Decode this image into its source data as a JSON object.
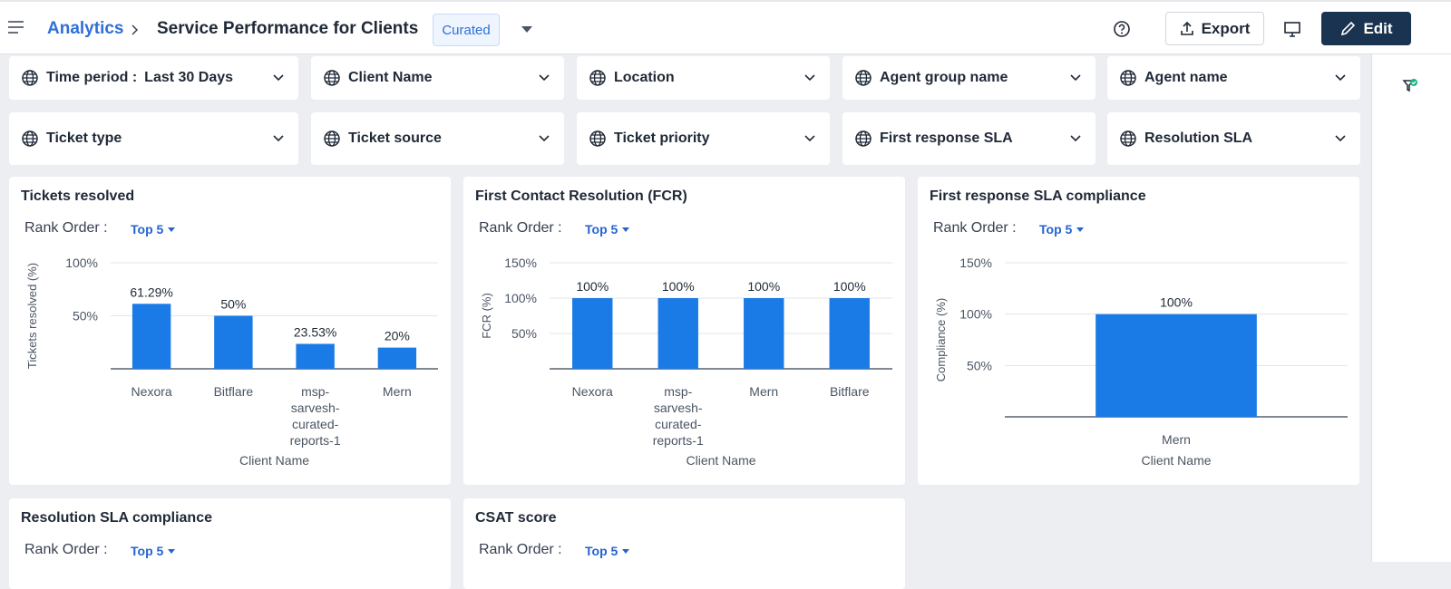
{
  "header": {
    "breadcrumb": "Analytics",
    "title": "Service Performance for Clients",
    "badge": "Curated",
    "export": "Export",
    "edit": "Edit"
  },
  "filters": [
    {
      "label": "Time period :",
      "value": "Last 30 Days"
    },
    {
      "label": "Client Name"
    },
    {
      "label": "Location"
    },
    {
      "label": "Agent group name"
    },
    {
      "label": "Agent name"
    },
    {
      "label": "Ticket type"
    },
    {
      "label": "Ticket source"
    },
    {
      "label": "Ticket priority"
    },
    {
      "label": "First response SLA"
    },
    {
      "label": "Resolution SLA"
    }
  ],
  "panels": [
    {
      "title": "Tickets resolved",
      "rank_label": "Rank Order :",
      "rank_value": "Top 5",
      "chart": {
        "type": "bar",
        "categories": [
          "Nexora",
          "Bitflare",
          "msp-sarvesh-curated-reports-1",
          "Mern"
        ],
        "values": [
          61.29,
          50,
          23.53,
          20
        ],
        "value_labels": [
          "61.29%",
          "50%",
          "23.53%",
          "20%"
        ],
        "ylim": [
          0,
          100
        ],
        "yticks": [
          {
            "value": 50,
            "label": "50%"
          },
          {
            "value": 100,
            "label": "100%"
          }
        ],
        "ylabel": "Tickets resolved (%)",
        "xlabel": "Client Name",
        "color": "#1a7be6"
      }
    },
    {
      "title": "First Contact Resolution (FCR)",
      "rank_label": "Rank Order :",
      "rank_value": "Top 5",
      "chart": {
        "type": "bar",
        "categories": [
          "Nexora",
          "msp-sarvesh-curated-reports-1",
          "Mern",
          "Bitflare"
        ],
        "values": [
          100,
          100,
          100,
          100
        ],
        "value_labels": [
          "100%",
          "100%",
          "100%",
          "100%"
        ],
        "ylim": [
          0,
          150
        ],
        "yticks": [
          {
            "value": 50,
            "label": "50%"
          },
          {
            "value": 100,
            "label": "100%"
          },
          {
            "value": 150,
            "label": "150%"
          }
        ],
        "ylabel": "FCR (%)",
        "xlabel": "Client Name",
        "color": "#1a7be6"
      }
    },
    {
      "title": "First response SLA compliance",
      "rank_label": "Rank Order :",
      "rank_value": "Top 5",
      "chart": {
        "type": "bar",
        "categories": [
          "Mern"
        ],
        "values": [
          100
        ],
        "value_labels": [
          "100%"
        ],
        "ylim": [
          0,
          150
        ],
        "yticks": [
          {
            "value": 50,
            "label": "50%"
          },
          {
            "value": 100,
            "label": "100%"
          },
          {
            "value": 150,
            "label": "150%"
          }
        ],
        "ylabel": "Compliance (%)",
        "xlabel": "Client Name",
        "color": "#1a7be6"
      }
    },
    {
      "title": "Resolution SLA compliance",
      "rank_label": "Rank Order :",
      "rank_value": "Top 5"
    },
    {
      "title": "CSAT score",
      "rank_label": "Rank Order :",
      "rank_value": "Top 5"
    }
  ]
}
